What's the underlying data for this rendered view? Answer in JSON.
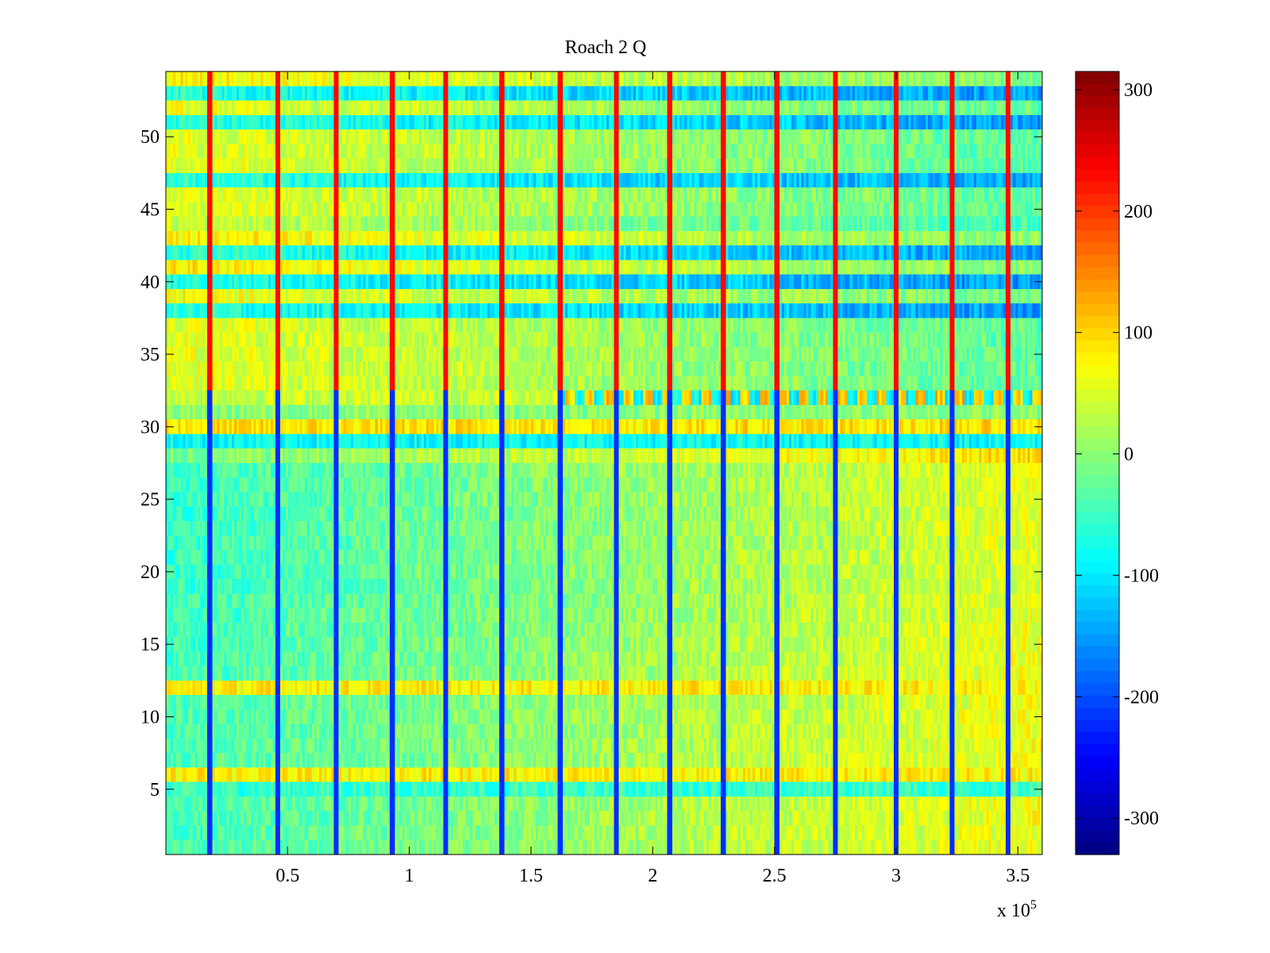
{
  "chart_data": {
    "type": "heatmap",
    "title": "Roach 2 Q",
    "xlabel": "",
    "ylabel": "",
    "x_multiplier_label": {
      "base": "x 10",
      "exponent": "5"
    },
    "xlim": [
      0,
      3.6
    ],
    "ylim": [
      0.5,
      54.5
    ],
    "x_ticks": [
      0.5,
      1,
      1.5,
      2,
      2.5,
      3,
      3.5
    ],
    "x_tick_labels": [
      "0.5",
      "1",
      "1.5",
      "2",
      "2.5",
      "3",
      "3.5"
    ],
    "y_ticks": [
      5,
      10,
      15,
      20,
      25,
      30,
      35,
      40,
      45,
      50
    ],
    "y_tick_labels": [
      "5",
      "10",
      "15",
      "20",
      "25",
      "30",
      "35",
      "40",
      "45",
      "50"
    ],
    "rows": 54,
    "columns": 360,
    "colormap": "jet",
    "color_range": [
      -330,
      315
    ],
    "colorbar_ticks": [
      300,
      200,
      100,
      0,
      -100,
      -200,
      -300
    ],
    "colorbar_tick_labels": [
      "300",
      "200",
      "100",
      "0",
      "-100",
      "-200",
      "-300"
    ],
    "vertical_stripe_x": [
      0.18,
      0.46,
      0.7,
      0.93,
      1.15,
      1.38,
      1.62,
      1.85,
      2.07,
      2.29,
      2.51,
      2.75,
      3.0,
      3.23,
      3.46
    ],
    "row_means": [
      -20,
      -20,
      -20,
      -20,
      -55,
      80,
      -20,
      -20,
      -20,
      -20,
      -20,
      80,
      -20,
      -30,
      -35,
      -40,
      -45,
      -50,
      -55,
      -55,
      -55,
      -55,
      -50,
      -50,
      -50,
      -45,
      -40,
      85,
      -85,
      90,
      0,
      70,
      60,
      60,
      60,
      60,
      60,
      -65,
      70,
      -65,
      85,
      -60,
      85,
      40,
      60,
      60,
      -60,
      60,
      60,
      60,
      -60,
      60,
      -65,
      80
    ],
    "notes_region_shift_rows": "rows 1-28 rise from about -50 on the left to about +50 on the right; rows 32-54 fall from about +60 on the left to about -10 on the right; row 32 shows strong alternating blue and red blocks"
  }
}
